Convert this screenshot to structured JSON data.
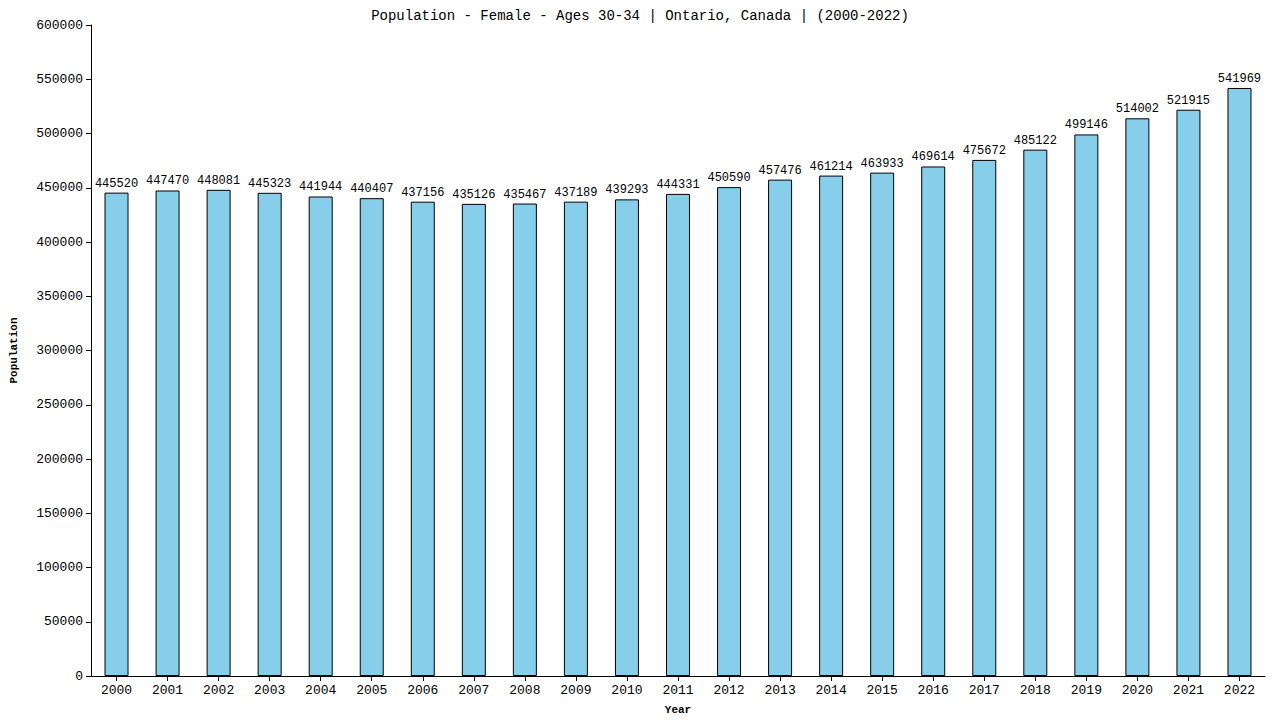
{
  "chart_data": {
    "type": "bar",
    "title": "Population - Female - Ages 30-34 | Ontario, Canada | (2000-2022)",
    "x_label": "Year",
    "y_label": "Population",
    "categories": [
      "2000",
      "2001",
      "2002",
      "2003",
      "2004",
      "2005",
      "2006",
      "2007",
      "2008",
      "2009",
      "2010",
      "2011",
      "2012",
      "2013",
      "2014",
      "2015",
      "2016",
      "2017",
      "2018",
      "2019",
      "2020",
      "2021",
      "2022"
    ],
    "values": [
      445520,
      447470,
      448081,
      445323,
      441944,
      440407,
      437156,
      435126,
      435467,
      437189,
      439293,
      444331,
      450590,
      457476,
      461214,
      463933,
      469614,
      475672,
      485122,
      499146,
      514002,
      521915,
      541969
    ],
    "color": "#87ceeb",
    "ylim": [
      0,
      600000
    ],
    "yticks": [
      0,
      50000,
      100000,
      150000,
      200000,
      250000,
      300000,
      350000,
      400000,
      450000,
      500000,
      550000,
      600000
    ],
    "grid": false,
    "data_labels": true
  }
}
